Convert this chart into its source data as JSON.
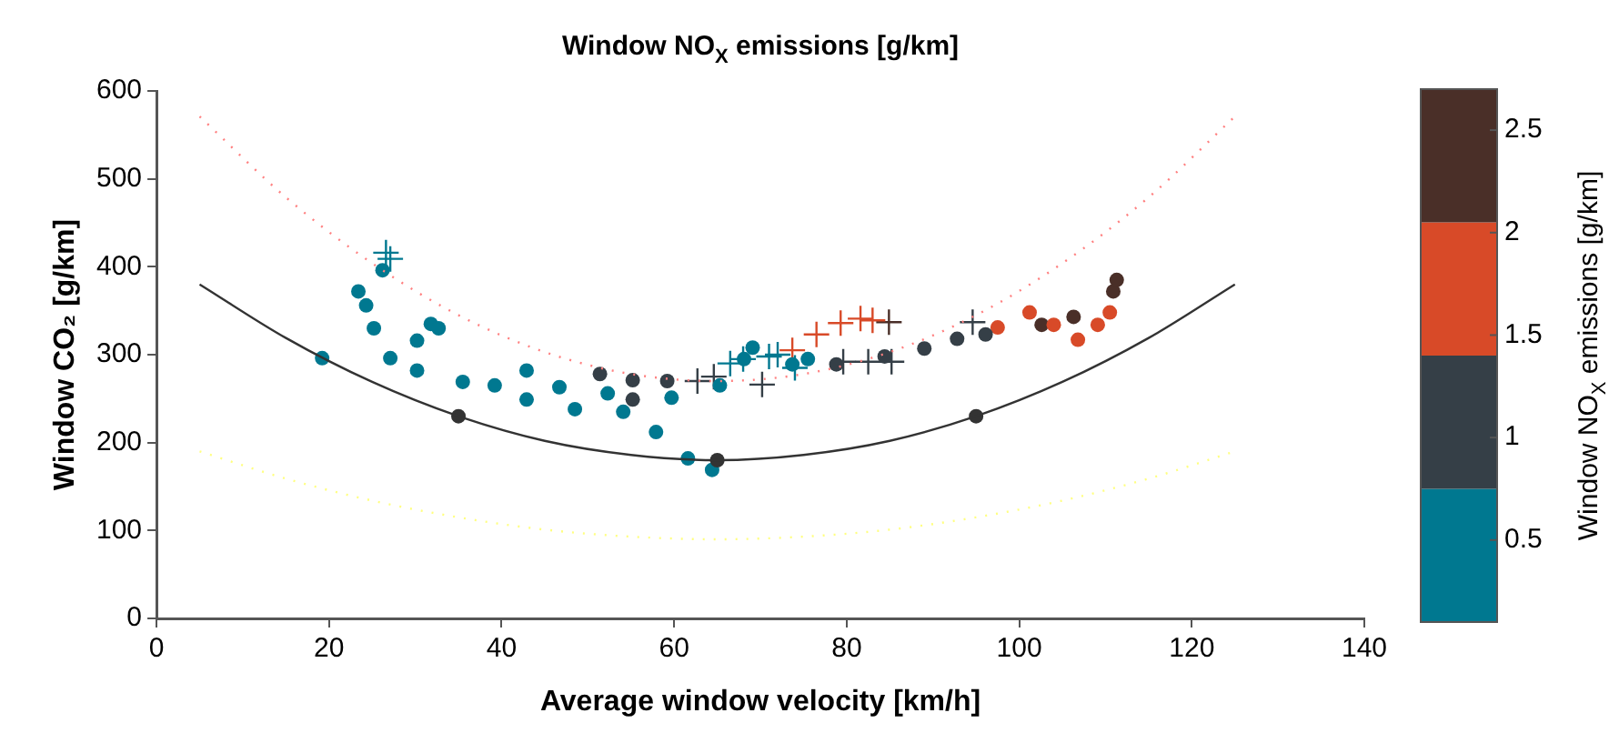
{
  "chart_data": {
    "type": "scatter",
    "title": "Window NO$_{X}$ emissions [g/km]",
    "xlabel": "Average window velocity [km/h]",
    "ylabel": "Window CO₂ [g/km]",
    "clabel": "Window NO$_{X}$ emissions [g/km]",
    "xlim": [
      0,
      140
    ],
    "xticks": [
      0,
      20,
      40,
      60,
      80,
      100,
      120,
      140
    ],
    "ylim": [
      0,
      600
    ],
    "yticks": [
      0,
      100,
      200,
      300,
      400,
      500,
      600
    ],
    "clim": [
      0.1,
      2.7
    ],
    "cticks": [
      0.5,
      1,
      1.5,
      2,
      2.5
    ],
    "colors": [
      "#007890",
      "#353f47",
      "#d84a28",
      "#4a2f28"
    ],
    "grid": false,
    "legend": false,
    "series": [
      {
        "type": "line",
        "color": "#ff8080",
        "line_style": "dotted",
        "marker": "none",
        "x": [
          5,
          15,
          25,
          35,
          45,
          55,
          65,
          75,
          85,
          95,
          105,
          115,
          125
        ],
        "values": [
          571,
          479,
          404,
          345,
          303,
          278,
          270,
          278,
          303,
          345,
          404,
          479,
          571
        ]
      },
      {
        "type": "line",
        "color": "#ffff80",
        "line_style": "dotted",
        "marker": "none",
        "x": [
          5,
          15,
          25,
          35,
          45,
          55,
          65,
          75,
          85,
          95,
          105,
          115,
          125
        ],
        "values": [
          190,
          159,
          134,
          115,
          101,
          93,
          90,
          93,
          101,
          115,
          134,
          159,
          190
        ]
      },
      {
        "type": "line",
        "color": "#333333",
        "line_style": "solid",
        "marker": "none",
        "x": [
          5,
          15,
          25,
          35,
          45,
          55,
          65,
          75,
          85,
          95,
          105,
          115,
          125
        ],
        "values": [
          380,
          319,
          269,
          230,
          202,
          186,
          180,
          186,
          202,
          230,
          269,
          319,
          380
        ]
      },
      {
        "type": "scatter",
        "color": "#333333",
        "marker": "circle",
        "x": [
          35,
          65,
          95
        ],
        "values": [
          230,
          180,
          230
        ]
      },
      {
        "type": "scatter",
        "color": "#007890",
        "marker": "circle",
        "x": [
          19.2,
          23.4,
          26.2,
          24.3,
          25.2,
          31.8,
          32.7,
          30.2,
          27.1,
          30.2,
          35.5,
          39.2,
          42.9,
          46.7,
          52.3,
          59.7,
          65.3,
          68.1,
          69.1,
          73.7,
          75.5,
          42.9,
          48.5,
          54.1,
          57.9,
          61.6,
          64.4
        ],
        "values": [
          296,
          372,
          396,
          356,
          330,
          335,
          330,
          316,
          296,
          282,
          269,
          265,
          282,
          263,
          256,
          251,
          265,
          295,
          308,
          289,
          295,
          249,
          238,
          235,
          212,
          182,
          169
        ]
      },
      {
        "type": "scatter",
        "color": "#007890",
        "marker": "cross",
        "x": [
          26.6,
          27.1,
          66.5,
          68,
          71,
          72,
          74
        ],
        "values": [
          416,
          409,
          290,
          295,
          298,
          300,
          285
        ]
      },
      {
        "type": "scatter",
        "color": "#353f47",
        "marker": "circle",
        "x": [
          51.4,
          55.2,
          59.2,
          78.8,
          84.4,
          89,
          92.8,
          96.1,
          55.2
        ],
        "values": [
          278,
          271,
          270,
          289,
          298,
          307,
          318,
          323,
          249
        ]
      },
      {
        "type": "scatter",
        "color": "#353f47",
        "marker": "cross",
        "x": [
          62.7,
          64.6,
          70.2,
          79.6,
          82.5,
          85.2,
          94.6
        ],
        "values": [
          270,
          275,
          266,
          292,
          292,
          292,
          337
        ]
      },
      {
        "type": "scatter",
        "color": "#d84a28",
        "marker": "circle",
        "x": [
          97.5,
          101.2,
          104,
          106.8,
          109.1,
          110.5
        ],
        "values": [
          331,
          348,
          334,
          317,
          334,
          348
        ]
      },
      {
        "type": "scatter",
        "color": "#d84a28",
        "marker": "cross",
        "x": [
          73.7,
          76.5,
          79.3,
          81.6,
          83
        ],
        "values": [
          305,
          323,
          336,
          341,
          339
        ]
      },
      {
        "type": "scatter",
        "color": "#4a2f28",
        "marker": "cross",
        "x": [
          84.9
        ],
        "values": [
          337
        ]
      },
      {
        "type": "scatter",
        "color": "#4a2f28",
        "marker": "circle",
        "x": [
          102.6,
          106.3,
          110.9,
          111.3
        ],
        "values": [
          334,
          343,
          372,
          385
        ]
      }
    ]
  }
}
